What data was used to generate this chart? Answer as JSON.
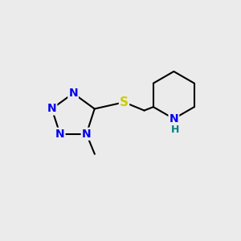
{
  "background_color": "#ebebeb",
  "bond_color": "#000000",
  "bond_width": 1.5,
  "atom_colors": {
    "N": "#0000ee",
    "S": "#cccc00",
    "NH_N": "#0000ee",
    "NH_H": "#008080",
    "C": "#000000"
  },
  "font_size_N": 11,
  "font_size_S": 12,
  "font_size_H": 10
}
